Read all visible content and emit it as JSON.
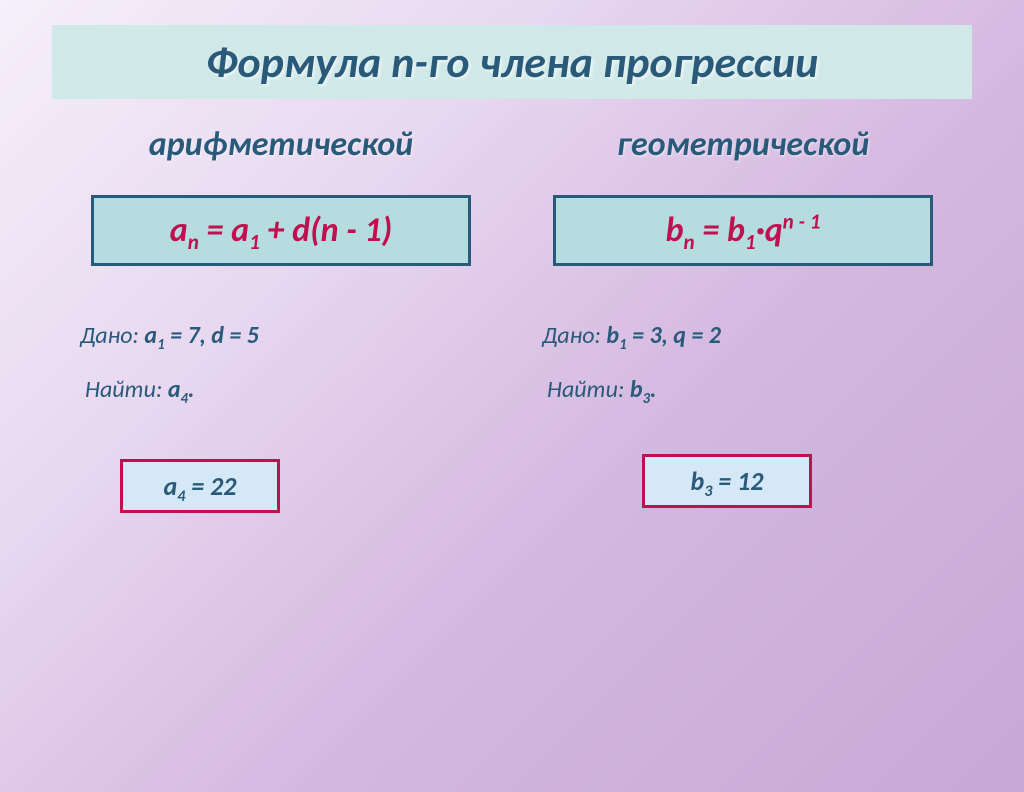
{
  "title": "Формула n-го члена прогрессии",
  "colors": {
    "title_bg": "#d0e8e8",
    "heading_color": "#2a5a7a",
    "formula_bg": "#b5dde0",
    "formula_border": "#2a5a7a",
    "formula_text": "#c01050",
    "answer_bg": "#d5e8f5",
    "answer_border": "#c01050",
    "text_color": "#2a5a7a",
    "page_gradient_from": "#f5f0fa",
    "page_gradient_to": "#c8a8d5"
  },
  "left": {
    "subheading": "арифметической",
    "formula_html": "a<sub>n</sub> = a<sub>1</sub> + d(n - 1)",
    "given_label": "Дано:",
    "given_value_html": "a<sub>1</sub> = 7, d = 5",
    "find_label": "Найти:",
    "find_value_html": "a<sub>4</sub>.",
    "answer_html": "a<sub>4</sub> = 22"
  },
  "right": {
    "subheading": "геометрической",
    "formula_html": "b<sub>n</sub> = b<sub>1</sub>·q<sup>n - 1</sup>",
    "given_label": "Дано:",
    "given_value_html": "b<sub>1</sub> = 3, q = 2",
    "find_label": "Найти:",
    "find_value_html": "b<sub>3</sub>.",
    "answer_html": "b<sub>3</sub> = 12"
  }
}
